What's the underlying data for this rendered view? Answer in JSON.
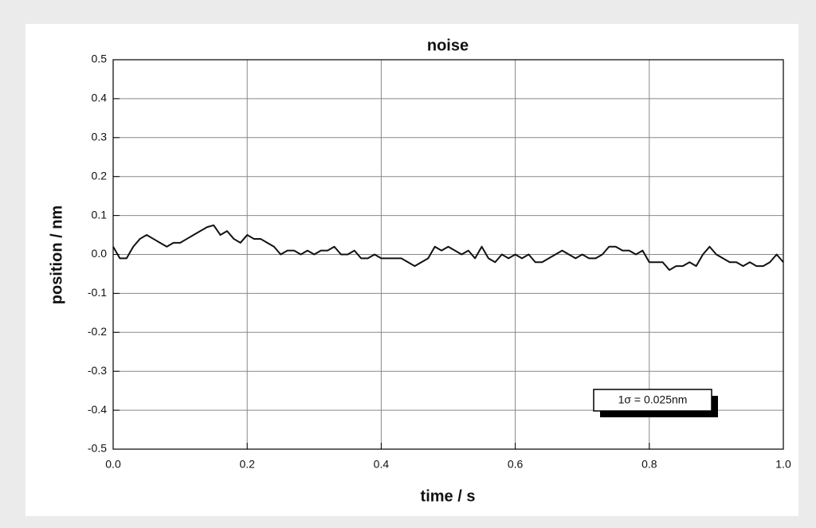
{
  "chart_data": {
    "type": "line",
    "title": "noise",
    "xlabel": "time  / s",
    "ylabel": "position  / nm",
    "annotation": "1σ = 0.025nm",
    "x": [
      0,
      0.01,
      0.02,
      0.03,
      0.04,
      0.05,
      0.06,
      0.07,
      0.08,
      0.09,
      0.1,
      0.11,
      0.12,
      0.13,
      0.14,
      0.15,
      0.16,
      0.17,
      0.18,
      0.19,
      0.2,
      0.21,
      0.22,
      0.23,
      0.24,
      0.25,
      0.26,
      0.27,
      0.28,
      0.29,
      0.3,
      0.31,
      0.32,
      0.33,
      0.34,
      0.35,
      0.36,
      0.37,
      0.38,
      0.39,
      0.4,
      0.41,
      0.42,
      0.43,
      0.44,
      0.45,
      0.46,
      0.47,
      0.48,
      0.49,
      0.5,
      0.51,
      0.52,
      0.53,
      0.54,
      0.55,
      0.56,
      0.57,
      0.58,
      0.59,
      0.6,
      0.61,
      0.62,
      0.63,
      0.64,
      0.65,
      0.66,
      0.67,
      0.68,
      0.69,
      0.7,
      0.71,
      0.72,
      0.73,
      0.74,
      0.75,
      0.76,
      0.77,
      0.78,
      0.79,
      0.8,
      0.81,
      0.82,
      0.83,
      0.84,
      0.85,
      0.86,
      0.87,
      0.88,
      0.89,
      0.9,
      0.91,
      0.92,
      0.93,
      0.94,
      0.95,
      0.96,
      0.97,
      0.98,
      0.99,
      1
    ],
    "series": [
      {
        "name": "position",
        "color": "#111111",
        "values": [
          0.02,
          -0.01,
          -0.01,
          0.02,
          0.04,
          0.05,
          0.04,
          0.03,
          0.02,
          0.03,
          0.03,
          0.04,
          0.05,
          0.06,
          0.07,
          0.075,
          0.05,
          0.06,
          0.04,
          0.03,
          0.05,
          0.04,
          0.04,
          0.03,
          0.02,
          0,
          0.01,
          0.01,
          0,
          0.01,
          0,
          0.01,
          0.01,
          0.02,
          0,
          0,
          0.01,
          -0.01,
          -0.01,
          0,
          -0.01,
          -0.01,
          -0.01,
          -0.01,
          -0.02,
          -0.03,
          -0.02,
          -0.01,
          0.02,
          0.01,
          0.02,
          0.01,
          0,
          0.01,
          -0.01,
          0.02,
          -0.01,
          -0.02,
          0,
          -0.01,
          0,
          -0.01,
          0,
          -0.02,
          -0.02,
          -0.01,
          0,
          0.01,
          0,
          -0.01,
          0,
          -0.01,
          -0.01,
          0,
          0.02,
          0.02,
          0.01,
          0.01,
          0,
          0.01,
          -0.02,
          -0.02,
          -0.02,
          -0.04,
          -0.03,
          -0.03,
          -0.02,
          -0.03,
          0,
          0.02,
          0,
          -0.01,
          -0.02,
          -0.02,
          -0.03,
          -0.02,
          -0.03,
          -0.03,
          -0.02,
          0,
          -0.02
        ]
      }
    ],
    "xlim": [
      0,
      1
    ],
    "ylim": [
      -0.5,
      0.5
    ],
    "xticks": [
      {
        "value": 0,
        "label": "0.0"
      },
      0.2,
      0.4,
      0.6,
      0.8,
      {
        "value": 1,
        "label": "1.0"
      }
    ],
    "yticks": [
      -0.5,
      -0.4,
      -0.3,
      -0.2,
      -0.1,
      {
        "value": 0,
        "label": "0.0"
      },
      0.1,
      0.2,
      0.3,
      0.4,
      0.5
    ],
    "grid": true
  }
}
